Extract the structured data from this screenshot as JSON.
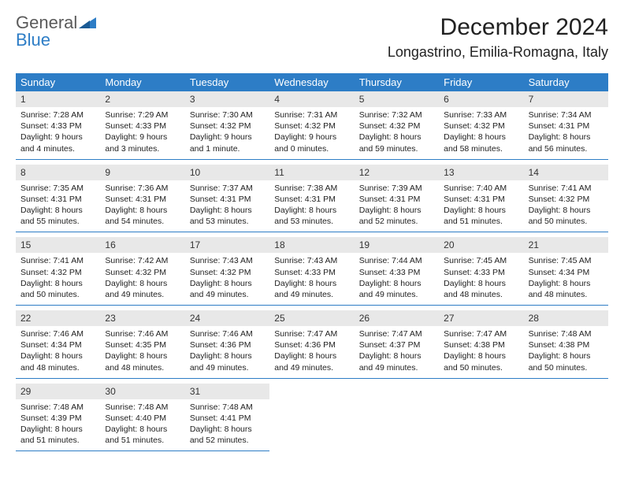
{
  "brand": {
    "word1": "General",
    "word2": "Blue",
    "word1_color": "#5a5a5a",
    "word2_color": "#2d7dc6",
    "icon_color": "#2d7dc6"
  },
  "title": "December 2024",
  "location": "Longastrino, Emilia-Romagna, Italy",
  "colors": {
    "header_bg": "#2d7dc6",
    "header_fg": "#ffffff",
    "daynum_bg": "#e8e8e8",
    "border": "#2d7dc6",
    "text": "#222222",
    "background": "#ffffff"
  },
  "dow": [
    "Sunday",
    "Monday",
    "Tuesday",
    "Wednesday",
    "Thursday",
    "Friday",
    "Saturday"
  ],
  "weeks": [
    [
      {
        "n": "1",
        "sr": "Sunrise: 7:28 AM",
        "ss": "Sunset: 4:33 PM",
        "dl": "Daylight: 9 hours and 4 minutes."
      },
      {
        "n": "2",
        "sr": "Sunrise: 7:29 AM",
        "ss": "Sunset: 4:33 PM",
        "dl": "Daylight: 9 hours and 3 minutes."
      },
      {
        "n": "3",
        "sr": "Sunrise: 7:30 AM",
        "ss": "Sunset: 4:32 PM",
        "dl": "Daylight: 9 hours and 1 minute."
      },
      {
        "n": "4",
        "sr": "Sunrise: 7:31 AM",
        "ss": "Sunset: 4:32 PM",
        "dl": "Daylight: 9 hours and 0 minutes."
      },
      {
        "n": "5",
        "sr": "Sunrise: 7:32 AM",
        "ss": "Sunset: 4:32 PM",
        "dl": "Daylight: 8 hours and 59 minutes."
      },
      {
        "n": "6",
        "sr": "Sunrise: 7:33 AM",
        "ss": "Sunset: 4:32 PM",
        "dl": "Daylight: 8 hours and 58 minutes."
      },
      {
        "n": "7",
        "sr": "Sunrise: 7:34 AM",
        "ss": "Sunset: 4:31 PM",
        "dl": "Daylight: 8 hours and 56 minutes."
      }
    ],
    [
      {
        "n": "8",
        "sr": "Sunrise: 7:35 AM",
        "ss": "Sunset: 4:31 PM",
        "dl": "Daylight: 8 hours and 55 minutes."
      },
      {
        "n": "9",
        "sr": "Sunrise: 7:36 AM",
        "ss": "Sunset: 4:31 PM",
        "dl": "Daylight: 8 hours and 54 minutes."
      },
      {
        "n": "10",
        "sr": "Sunrise: 7:37 AM",
        "ss": "Sunset: 4:31 PM",
        "dl": "Daylight: 8 hours and 53 minutes."
      },
      {
        "n": "11",
        "sr": "Sunrise: 7:38 AM",
        "ss": "Sunset: 4:31 PM",
        "dl": "Daylight: 8 hours and 53 minutes."
      },
      {
        "n": "12",
        "sr": "Sunrise: 7:39 AM",
        "ss": "Sunset: 4:31 PM",
        "dl": "Daylight: 8 hours and 52 minutes."
      },
      {
        "n": "13",
        "sr": "Sunrise: 7:40 AM",
        "ss": "Sunset: 4:31 PM",
        "dl": "Daylight: 8 hours and 51 minutes."
      },
      {
        "n": "14",
        "sr": "Sunrise: 7:41 AM",
        "ss": "Sunset: 4:32 PM",
        "dl": "Daylight: 8 hours and 50 minutes."
      }
    ],
    [
      {
        "n": "15",
        "sr": "Sunrise: 7:41 AM",
        "ss": "Sunset: 4:32 PM",
        "dl": "Daylight: 8 hours and 50 minutes."
      },
      {
        "n": "16",
        "sr": "Sunrise: 7:42 AM",
        "ss": "Sunset: 4:32 PM",
        "dl": "Daylight: 8 hours and 49 minutes."
      },
      {
        "n": "17",
        "sr": "Sunrise: 7:43 AM",
        "ss": "Sunset: 4:32 PM",
        "dl": "Daylight: 8 hours and 49 minutes."
      },
      {
        "n": "18",
        "sr": "Sunrise: 7:43 AM",
        "ss": "Sunset: 4:33 PM",
        "dl": "Daylight: 8 hours and 49 minutes."
      },
      {
        "n": "19",
        "sr": "Sunrise: 7:44 AM",
        "ss": "Sunset: 4:33 PM",
        "dl": "Daylight: 8 hours and 49 minutes."
      },
      {
        "n": "20",
        "sr": "Sunrise: 7:45 AM",
        "ss": "Sunset: 4:33 PM",
        "dl": "Daylight: 8 hours and 48 minutes."
      },
      {
        "n": "21",
        "sr": "Sunrise: 7:45 AM",
        "ss": "Sunset: 4:34 PM",
        "dl": "Daylight: 8 hours and 48 minutes."
      }
    ],
    [
      {
        "n": "22",
        "sr": "Sunrise: 7:46 AM",
        "ss": "Sunset: 4:34 PM",
        "dl": "Daylight: 8 hours and 48 minutes."
      },
      {
        "n": "23",
        "sr": "Sunrise: 7:46 AM",
        "ss": "Sunset: 4:35 PM",
        "dl": "Daylight: 8 hours and 48 minutes."
      },
      {
        "n": "24",
        "sr": "Sunrise: 7:46 AM",
        "ss": "Sunset: 4:36 PM",
        "dl": "Daylight: 8 hours and 49 minutes."
      },
      {
        "n": "25",
        "sr": "Sunrise: 7:47 AM",
        "ss": "Sunset: 4:36 PM",
        "dl": "Daylight: 8 hours and 49 minutes."
      },
      {
        "n": "26",
        "sr": "Sunrise: 7:47 AM",
        "ss": "Sunset: 4:37 PM",
        "dl": "Daylight: 8 hours and 49 minutes."
      },
      {
        "n": "27",
        "sr": "Sunrise: 7:47 AM",
        "ss": "Sunset: 4:38 PM",
        "dl": "Daylight: 8 hours and 50 minutes."
      },
      {
        "n": "28",
        "sr": "Sunrise: 7:48 AM",
        "ss": "Sunset: 4:38 PM",
        "dl": "Daylight: 8 hours and 50 minutes."
      }
    ],
    [
      {
        "n": "29",
        "sr": "Sunrise: 7:48 AM",
        "ss": "Sunset: 4:39 PM",
        "dl": "Daylight: 8 hours and 51 minutes."
      },
      {
        "n": "30",
        "sr": "Sunrise: 7:48 AM",
        "ss": "Sunset: 4:40 PM",
        "dl": "Daylight: 8 hours and 51 minutes."
      },
      {
        "n": "31",
        "sr": "Sunrise: 7:48 AM",
        "ss": "Sunset: 4:41 PM",
        "dl": "Daylight: 8 hours and 52 minutes."
      },
      null,
      null,
      null,
      null
    ]
  ]
}
